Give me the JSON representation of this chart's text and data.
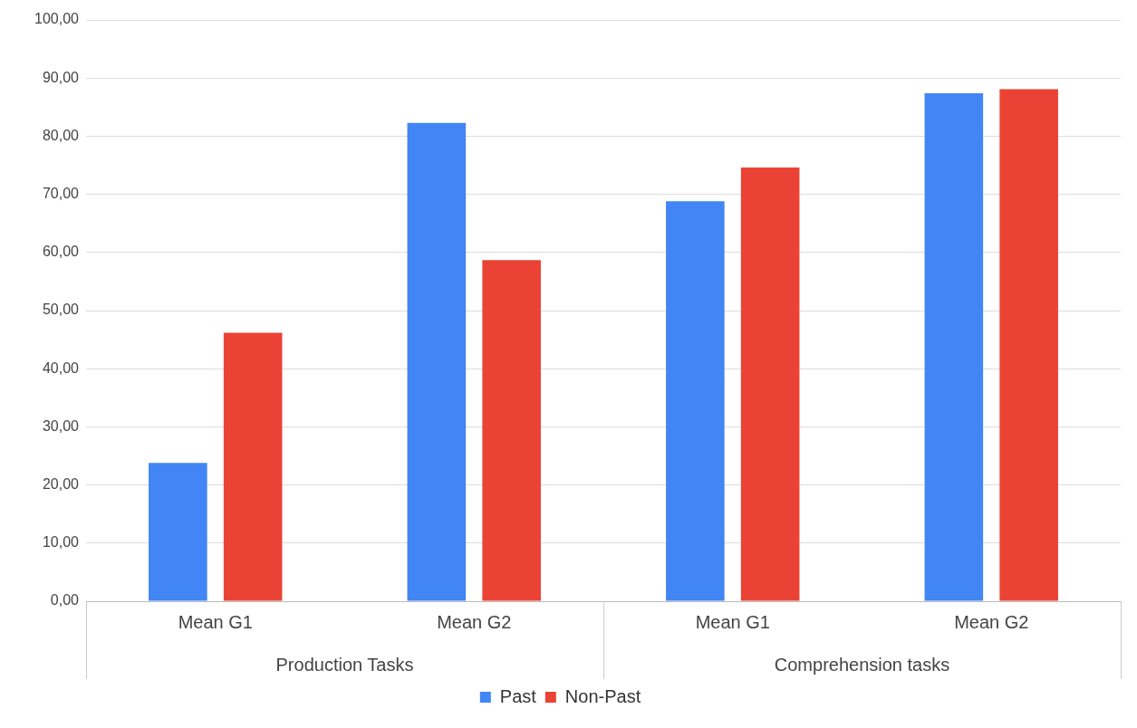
{
  "chart_data": {
    "type": "bar",
    "categories": [
      "Mean G1",
      "Mean G2",
      "Mean G1",
      "Mean G2"
    ],
    "series": [
      {
        "name": "Past",
        "color": "#4285f4",
        "values": [
          23.8,
          82.3,
          68.8,
          87.4
        ]
      },
      {
        "name": "Non-Past",
        "color": "#ea4335",
        "values": [
          46.2,
          58.7,
          74.6,
          88.1
        ]
      }
    ],
    "ylim": [
      0,
      100
    ],
    "yticks": [
      {
        "value": 0,
        "label": "0,00"
      },
      {
        "value": 10,
        "label": "10,00"
      },
      {
        "value": 20,
        "label": "20,00"
      },
      {
        "value": 30,
        "label": "30,00"
      },
      {
        "value": 40,
        "label": "40,00"
      },
      {
        "value": 50,
        "label": "50,00"
      },
      {
        "value": 60,
        "label": "60,00"
      },
      {
        "value": 70,
        "label": "70,00"
      },
      {
        "value": 80,
        "label": "80,00"
      },
      {
        "value": 90,
        "label": "90,00"
      },
      {
        "value": 100,
        "label": "100,00"
      }
    ],
    "annotations": [
      "Production Tasks",
      "Comprehension tasks"
    ],
    "grid": "y",
    "legend": "bottom"
  }
}
